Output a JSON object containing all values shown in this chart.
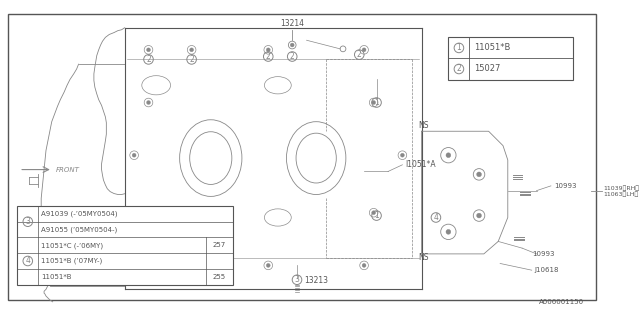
{
  "bg_color": "#ffffff",
  "line_color": "#888888",
  "dark_color": "#555555",
  "part_numbers": {
    "label1": "11051*B",
    "label2": "15027",
    "label3_a": "A91039 (-’05MY0504)",
    "label3_b": "A91055 (’05MY0504-)",
    "label4_a": "11051*C (-’06MY)",
    "label4_b": "11051*B (’07MY-)",
    "label4_c": "11051*B",
    "num257": "257",
    "num255": "255"
  },
  "annotations": {
    "part13214": "13214",
    "part13213": "13213",
    "part10993a": "10993",
    "part10993b": "10993",
    "partJ10618": "J10618",
    "partNS1": "NS",
    "partNS2": "NS",
    "part11051A": "I1051*A",
    "part11039": "11039〈RH〉",
    "part11063": "11063〈LH〉",
    "catalog_num": "A006001150"
  }
}
